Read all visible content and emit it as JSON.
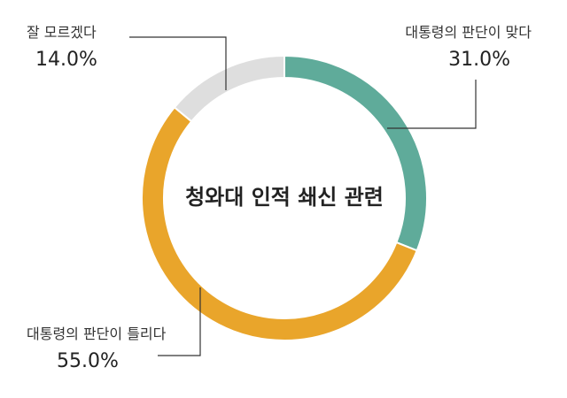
{
  "chart_data": {
    "type": "pie",
    "title": "청와대 인적 쇄신 관련",
    "slices": [
      {
        "label": "대통령의 판단이 맞다",
        "value": 31.0,
        "display": "31.0%",
        "color": "#5fab9a"
      },
      {
        "label": "대통령의 판단이 틀리다",
        "value": 55.0,
        "display": "55.0%",
        "color": "#e9a52b"
      },
      {
        "label": "잘 모르겠다",
        "value": 14.0,
        "display": "14.0%",
        "color": "#dedede"
      }
    ]
  }
}
